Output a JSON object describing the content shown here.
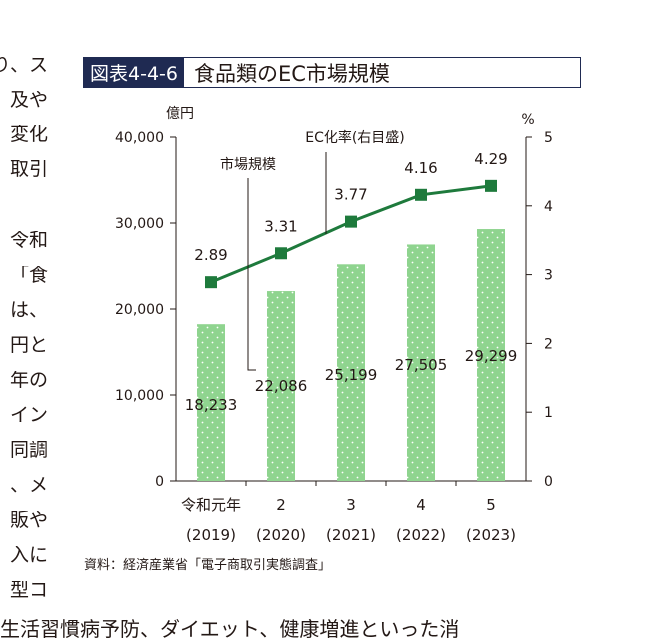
{
  "page_text": {
    "left_lines": [
      "り、ス",
      "及や",
      "変化",
      "取引",
      "",
      "令和",
      "「食",
      "は、",
      "円と",
      "年の",
      "イン",
      "同調",
      "、メ",
      "販や",
      "入に",
      "型コ"
    ],
    "bottom_line": "生活習慣病予防、ダイエット、健康増進といった消"
  },
  "figure": {
    "label": "図表4-4-6",
    "title": "食品類のEC市場規模",
    "source": "資料：経済産業省「電子商取引実態調査」"
  },
  "chart_data": {
    "type": "bar",
    "categories": [
      "令和元年",
      "2",
      "3",
      "4",
      "5"
    ],
    "categories_sub": [
      "(2019)",
      "(2020)",
      "(2021)",
      "(2022)",
      "(2023)"
    ],
    "series": [
      {
        "name": "市場規模",
        "kind": "bar",
        "axis": "left",
        "values": [
          18233,
          22086,
          25199,
          27505,
          29299
        ],
        "labels": [
          "18,233",
          "22,086",
          "25,199",
          "27,505",
          "29,299"
        ]
      },
      {
        "name": "EC化率(右目盛)",
        "kind": "line",
        "axis": "right",
        "values": [
          2.89,
          3.31,
          3.77,
          4.16,
          4.29
        ],
        "labels": [
          "2.89",
          "3.31",
          "3.77",
          "4.16",
          "4.29"
        ]
      }
    ],
    "y_left": {
      "unit": "億円",
      "min": 0,
      "max": 40000,
      "ticks": [
        0,
        10000,
        20000,
        30000,
        40000
      ],
      "tick_labels": [
        "0",
        "10,000",
        "20,000",
        "30,000",
        "40,000"
      ]
    },
    "y_right": {
      "unit": "%",
      "min": 0,
      "max": 5,
      "ticks": [
        0,
        1,
        2,
        3,
        4,
        5
      ],
      "tick_labels": [
        "0",
        "1",
        "2",
        "3",
        "4",
        "5"
      ]
    },
    "grid": false,
    "colors": {
      "bar": "#8fd48f",
      "bar_dot": "#ffffff",
      "line": "#1e7a3c",
      "axis": "#231815",
      "header": "#1f2a52"
    }
  }
}
